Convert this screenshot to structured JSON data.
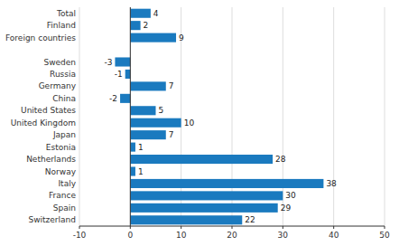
{
  "chart_data": {
    "type": "bar",
    "orientation": "horizontal",
    "categories": [
      "Switzerland",
      "Spain",
      "France",
      "Italy",
      "Norway",
      "Netherlands",
      "Estonia",
      "Japan",
      "United Kingdom",
      "United States",
      "China",
      "Germany",
      "Russia",
      "Sweden",
      null,
      "Foreign countries",
      "Finland",
      "Total"
    ],
    "values": [
      22,
      29,
      30,
      38,
      1,
      28,
      1,
      7,
      10,
      5,
      -2,
      7,
      -1,
      -3,
      null,
      9,
      2,
      4
    ],
    "color": "#1a7abf",
    "xlim": [
      -10,
      50
    ],
    "xticks": [
      -10,
      0,
      10,
      20,
      30,
      40,
      50
    ],
    "grid": true,
    "data_labels": true
  }
}
